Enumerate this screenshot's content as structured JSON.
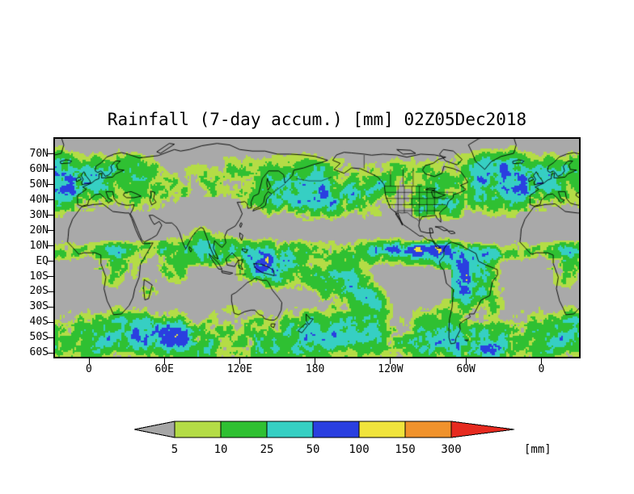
{
  "title": "Rainfall (7-day accum.) [mm] 02Z05Dec2018",
  "axes": {
    "lat_labels": [
      "70N",
      "60N",
      "50N",
      "40N",
      "30N",
      "20N",
      "10N",
      "EQ",
      "10S",
      "20S",
      "30S",
      "40S",
      "50S",
      "60S"
    ],
    "lon_labels": [
      "0",
      "60E",
      "120E",
      "180",
      "120W",
      "60W",
      "0"
    ]
  },
  "colorbar": {
    "levels": [
      "5",
      "10",
      "25",
      "50",
      "100",
      "150",
      "300"
    ],
    "unit": "[mm]",
    "colors": [
      "#a6a6a6",
      "#b4dc46",
      "#2fc032",
      "#36cfc3",
      "#2a3fe0",
      "#f0e43c",
      "#f0922c",
      "#e62a1f"
    ]
  },
  "map": {
    "background": "#a9a9a9",
    "coast_color": "#000000"
  }
}
